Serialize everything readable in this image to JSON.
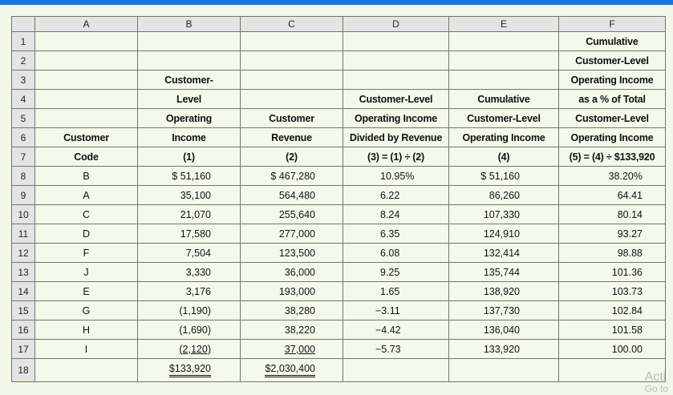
{
  "columns": [
    "A",
    "B",
    "C",
    "D",
    "E",
    "F"
  ],
  "header_rows": [
    {
      "row": "1",
      "cells": [
        "",
        "",
        "",
        "",
        "",
        "Cumulative"
      ]
    },
    {
      "row": "2",
      "cells": [
        "",
        "",
        "",
        "",
        "",
        "Customer-Level"
      ]
    },
    {
      "row": "3",
      "cells": [
        "",
        "Customer-",
        "",
        "",
        "",
        "Operating Income"
      ]
    },
    {
      "row": "4",
      "cells": [
        "",
        "Level",
        "",
        "Customer-Level",
        "Cumulative",
        "as a % of Total"
      ]
    },
    {
      "row": "5",
      "cells": [
        "",
        "Operating",
        "Customer",
        "Operating Income",
        "Customer-Level",
        "Customer-Level"
      ]
    },
    {
      "row": "6",
      "cells": [
        "Customer",
        "Income",
        "Revenue",
        "Divided by Revenue",
        "Operating Income",
        "Operating Income"
      ]
    },
    {
      "row": "7",
      "cells": [
        "Code",
        "(1)",
        "(2)",
        "(3) = (1) ÷ (2)",
        "(4)",
        "(5) = (4) ÷ $133,920"
      ]
    }
  ],
  "data_rows": [
    {
      "row": "8",
      "code": "B",
      "income": "$ 51,160",
      "revenue": "$  467,280",
      "ratio": "10.95%",
      "cumulative": "$ 51,160",
      "pct": "38.20%"
    },
    {
      "row": "9",
      "code": "A",
      "income": "35,100",
      "revenue": "564,480",
      "ratio": "6.22",
      "cumulative": "86,260",
      "pct": "64.41"
    },
    {
      "row": "10",
      "code": "C",
      "income": "21,070",
      "revenue": "255,640",
      "ratio": "8.24",
      "cumulative": "107,330",
      "pct": "80.14"
    },
    {
      "row": "11",
      "code": "D",
      "income": "17,580",
      "revenue": "277,000",
      "ratio": "6.35",
      "cumulative": "124,910",
      "pct": "93.27"
    },
    {
      "row": "12",
      "code": "F",
      "income": "7,504",
      "revenue": "123,500",
      "ratio": "6.08",
      "cumulative": "132,414",
      "pct": "98.88"
    },
    {
      "row": "13",
      "code": "J",
      "income": "3,330",
      "revenue": "36,000",
      "ratio": "9.25",
      "cumulative": "135,744",
      "pct": "101.36"
    },
    {
      "row": "14",
      "code": "E",
      "income": "3,176",
      "revenue": "193,000",
      "ratio": "1.65",
      "cumulative": "138,920",
      "pct": "103.73"
    },
    {
      "row": "15",
      "code": "G",
      "income": "(1,190)",
      "revenue": "38,280",
      "ratio": "−3.11",
      "cumulative": "137,730",
      "pct": "102.84"
    },
    {
      "row": "16",
      "code": "H",
      "income": "(1,690)",
      "revenue": "38,220",
      "ratio": "−4.42",
      "cumulative": "136,040",
      "pct": "101.58"
    },
    {
      "row": "17",
      "code": "I",
      "income": "(2,120)",
      "revenue": "37,000",
      "ratio": "−5.73",
      "cumulative": "133,920",
      "pct": "100.00"
    }
  ],
  "total_row": {
    "row": "18",
    "income": "$133,920",
    "revenue": "$2,030,400"
  },
  "watermark": {
    "line1": "Acti",
    "line2": "Go to"
  },
  "colors": {
    "accent_bar": "#1a73e8",
    "sheet_bg": "#f5f9ec",
    "header_bg": "#e4e4e4"
  }
}
